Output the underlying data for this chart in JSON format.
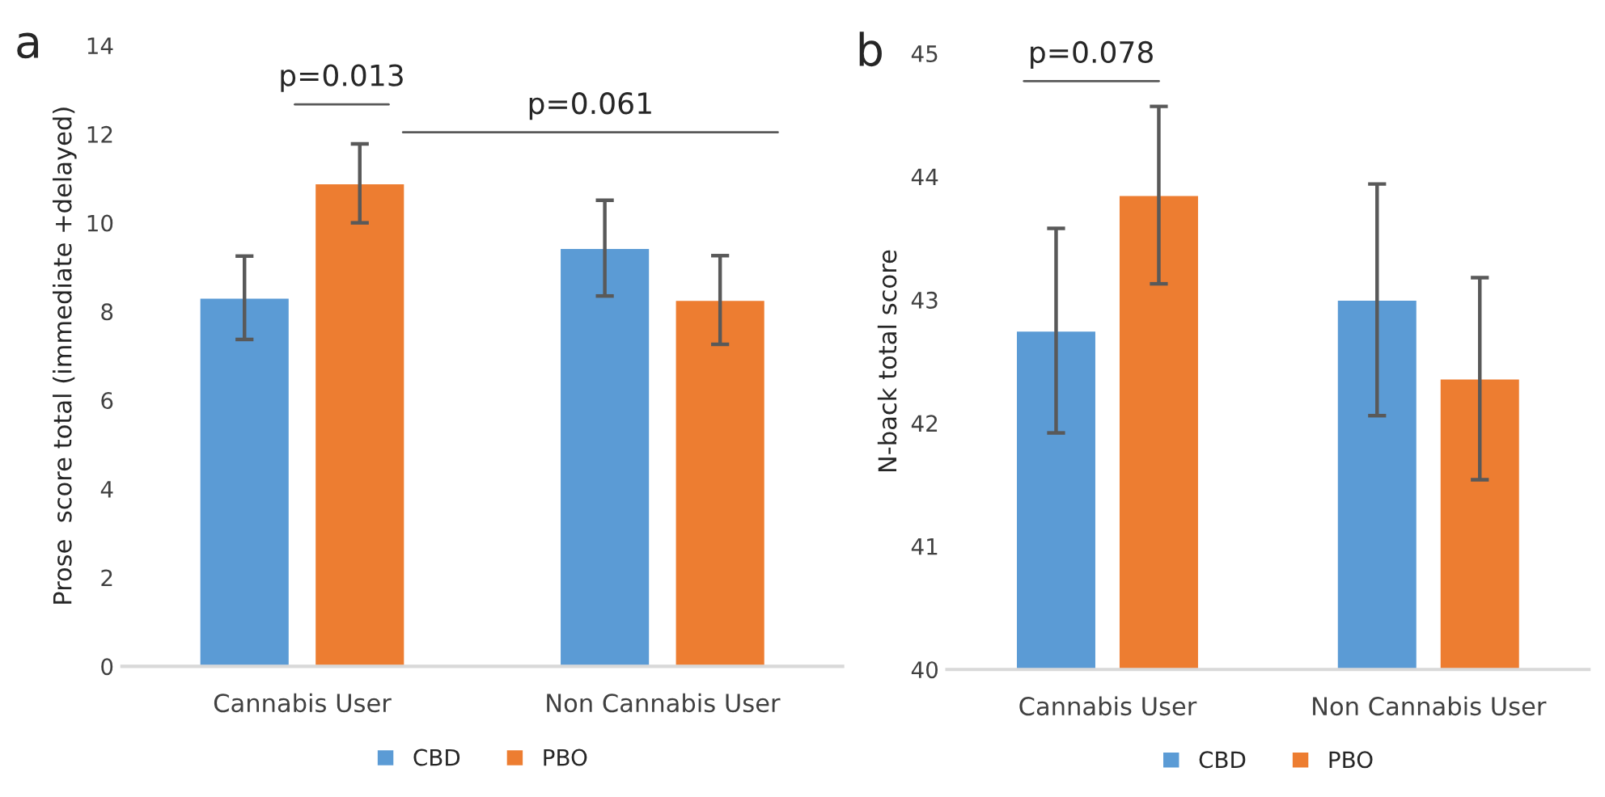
{
  "chart_data": [
    {
      "type": "bar",
      "ylabel": "Prose  score total (immediate +delayed)",
      "categories": [
        "Cannabis User",
        "Non Cannabis User"
      ],
      "series": [
        {
          "name": "CBD",
          "color": "#5b9bd5",
          "values": [
            8.31,
            9.43
          ],
          "errors": [
            0.94,
            1.08
          ]
        },
        {
          "name": "PBO",
          "color": "#ed7d31",
          "values": [
            10.89,
            8.26
          ],
          "errors": [
            0.89,
            1.0
          ]
        }
      ],
      "ylim": [
        0,
        14
      ],
      "yticks": [
        0,
        2,
        4,
        6,
        8,
        10,
        12,
        14
      ],
      "grid": false,
      "legend": "bottom",
      "annotations": [
        "a",
        "p=0.013",
        "p=0.061"
      ]
    },
    {
      "type": "bar",
      "ylabel": "N-back total score",
      "categories": [
        "Cannabis User",
        "Non Cannabis User"
      ],
      "series": [
        {
          "name": "CBD",
          "color": "#5b9bd5",
          "values": [
            42.75,
            43.0
          ],
          "errors": [
            0.83,
            0.94
          ]
        },
        {
          "name": "PBO",
          "color": "#ed7d31",
          "values": [
            43.85,
            42.36
          ],
          "errors": [
            0.72,
            0.82
          ]
        }
      ],
      "ylim": [
        40,
        45
      ],
      "yticks": [
        40,
        41,
        42,
        43,
        44,
        45
      ],
      "grid": false,
      "legend": "bottom",
      "annotations": [
        "b",
        "p=0.078"
      ]
    }
  ]
}
